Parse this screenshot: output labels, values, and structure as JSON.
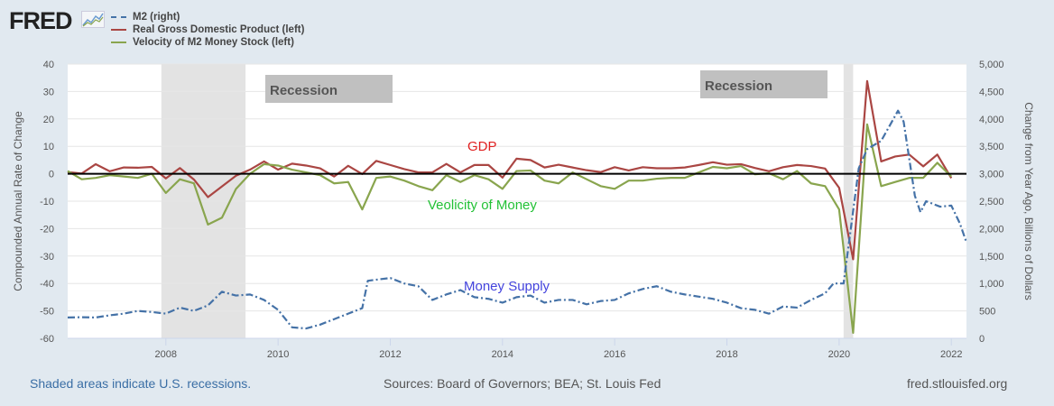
{
  "brand": "FRED",
  "legend": [
    {
      "label": "M2 (right)",
      "color": "#4572a7",
      "style": "dashdot"
    },
    {
      "label": "Real Gross Domestic Product (left)",
      "color": "#aa4643",
      "style": "solid"
    },
    {
      "label": "Velocity of M2 Money Stock (left)",
      "color": "#89a54e",
      "style": "solid"
    }
  ],
  "footer": {
    "note": "Shaded areas indicate U.S. recessions.",
    "sources": "Sources: Board of Governors; BEA; St. Louis Fed",
    "site": "fred.stlouisfed.org"
  },
  "chart_data": {
    "type": "line",
    "ylabel": "Compounded Annual Rate of Change",
    "ylabel_right": "Change from Year Ago, Billions of Dollars",
    "xlim": [
      2006.25,
      2022.27
    ],
    "ylim": [
      -60,
      40
    ],
    "ylim_right": [
      0,
      5000
    ],
    "xticks": [
      "2008",
      "2010",
      "2012",
      "2014",
      "2016",
      "2018",
      "2020",
      "2022"
    ],
    "yticks": [
      "40",
      "30",
      "20",
      "10",
      "0",
      "-10",
      "-20",
      "-30",
      "-40",
      "-50",
      "-60"
    ],
    "yticks_right": [
      "5,000",
      "4,500",
      "4,000",
      "3,500",
      "3,000",
      "2,500",
      "2,000",
      "1,500",
      "1,000",
      "500",
      "0"
    ],
    "grid": true,
    "legend_position": "top-left",
    "recessions": [
      [
        2007.92,
        2009.42
      ],
      [
        2020.08,
        2020.25
      ]
    ],
    "annotations": {
      "recession_label_1": "Recession",
      "recession_label_2": "Recession",
      "gdp": "GDP",
      "velocity": "Veolicity of Money",
      "money_supply": "Money Supply"
    },
    "x_start": 2006.25,
    "x_step": 0.25,
    "series": [
      {
        "name": "Real Gross Domestic Product (left)",
        "axis": "left",
        "color": "#aa4643",
        "values": [
          0.6,
          0.1,
          3.5,
          0.9,
          2.3,
          2.2,
          2.5,
          -1.7,
          2.1,
          -2.1,
          -8.5,
          -4.6,
          -0.7,
          1.5,
          4.5,
          1.5,
          3.7,
          3.0,
          2.0,
          -1.0,
          2.9,
          -0.1,
          4.7,
          3.2,
          1.7,
          0.5,
          0.5,
          3.6,
          0.5,
          3.2,
          3.2,
          -1.4,
          5.5,
          5.0,
          2.3,
          3.3,
          2.3,
          1.3,
          0.6,
          2.4,
          1.2,
          2.4,
          2.0,
          2.0,
          2.3,
          3.2,
          4.2,
          3.3,
          3.5,
          2.1,
          0.9,
          2.4,
          3.2,
          2.8,
          1.9,
          -5.1,
          -31.2,
          33.8,
          4.5,
          6.3,
          7.0,
          2.7,
          7.0,
          -1.6
        ]
      },
      {
        "name": "Velocity of M2 Money Stock (left)",
        "axis": "left",
        "color": "#89a54e",
        "values": [
          1,
          -2,
          -1.5,
          -0.5,
          -1,
          -1.5,
          0,
          -7,
          -2,
          -3.5,
          -18.5,
          -16,
          -5.5,
          0,
          3.5,
          3,
          1.5,
          0.5,
          -0.5,
          -3.5,
          -3,
          -13,
          -1.5,
          -1,
          -2.5,
          -4.5,
          -6,
          -0.5,
          -3,
          -0.5,
          -2,
          -5.5,
          1,
          1.2,
          -2.5,
          -3.5,
          0.5,
          -2,
          -4.5,
          -5.5,
          -2.5,
          -2.5,
          -1.8,
          -1.5,
          -1.5,
          0.5,
          2.5,
          2,
          2.8,
          -0.2,
          0.2,
          -2,
          1,
          -3.5,
          -4.5,
          -13,
          -58,
          18,
          -4.5,
          -3,
          -1.5,
          -1.5,
          4,
          -1
        ]
      },
      {
        "name": "M2 (right)",
        "axis": "right",
        "color": "#4572a7",
        "points": [
          [
            2006.25,
            380
          ],
          [
            2006.5,
            385
          ],
          [
            2006.75,
            380
          ],
          [
            2007,
            420
          ],
          [
            2007.25,
            450
          ],
          [
            2007.5,
            500
          ],
          [
            2007.75,
            480
          ],
          [
            2008,
            450
          ],
          [
            2008.25,
            560
          ],
          [
            2008.5,
            500
          ],
          [
            2008.75,
            600
          ],
          [
            2009,
            850
          ],
          [
            2009.25,
            780
          ],
          [
            2009.5,
            800
          ],
          [
            2009.75,
            700
          ],
          [
            2010,
            520
          ],
          [
            2010.25,
            200
          ],
          [
            2010.5,
            180
          ],
          [
            2010.75,
            250
          ],
          [
            2011,
            350
          ],
          [
            2011.25,
            450
          ],
          [
            2011.5,
            550
          ],
          [
            2011.6,
            1050
          ],
          [
            2012,
            1100
          ],
          [
            2012.25,
            1000
          ],
          [
            2012.5,
            950
          ],
          [
            2012.75,
            700
          ],
          [
            2013,
            800
          ],
          [
            2013.25,
            880
          ],
          [
            2013.5,
            750
          ],
          [
            2013.75,
            720
          ],
          [
            2014,
            650
          ],
          [
            2014.25,
            750
          ],
          [
            2014.5,
            780
          ],
          [
            2014.75,
            650
          ],
          [
            2015,
            700
          ],
          [
            2015.25,
            700
          ],
          [
            2015.5,
            620
          ],
          [
            2015.75,
            680
          ],
          [
            2016,
            700
          ],
          [
            2016.25,
            820
          ],
          [
            2016.5,
            900
          ],
          [
            2016.75,
            950
          ],
          [
            2017,
            850
          ],
          [
            2017.25,
            800
          ],
          [
            2017.5,
            760
          ],
          [
            2017.75,
            720
          ],
          [
            2018,
            650
          ],
          [
            2018.25,
            550
          ],
          [
            2018.5,
            520
          ],
          [
            2018.75,
            450
          ],
          [
            2019,
            580
          ],
          [
            2019.25,
            560
          ],
          [
            2019.5,
            700
          ],
          [
            2019.75,
            820
          ],
          [
            2019.9,
            1000
          ],
          [
            2020.08,
            1000
          ],
          [
            2020.35,
            3100
          ],
          [
            2020.5,
            3450
          ],
          [
            2020.75,
            3600
          ],
          [
            2021.05,
            4150
          ],
          [
            2021.15,
            3950
          ],
          [
            2021.35,
            2600
          ],
          [
            2021.45,
            2300
          ],
          [
            2021.55,
            2500
          ],
          [
            2021.8,
            2400
          ],
          [
            2022.0,
            2420
          ],
          [
            2022.15,
            2100
          ],
          [
            2022.27,
            1750
          ]
        ]
      }
    ]
  }
}
